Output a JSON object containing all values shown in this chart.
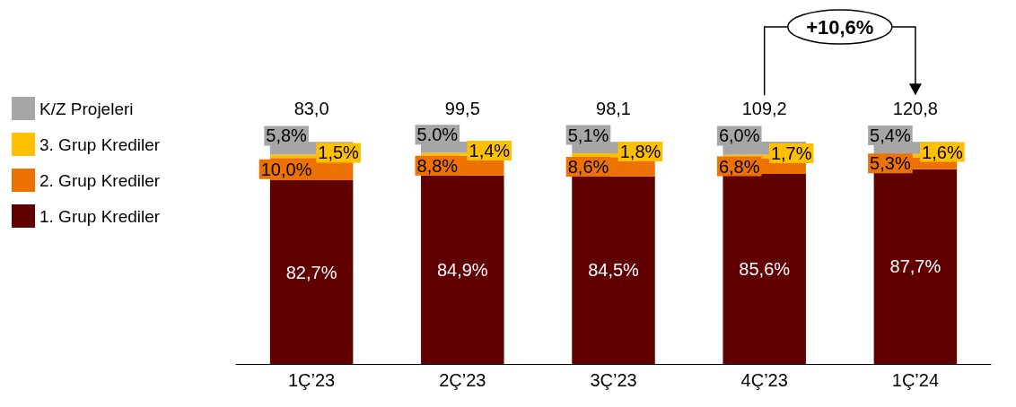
{
  "chart_data": {
    "type": "bar",
    "stacked": true,
    "categories": [
      "1Ç’23",
      "2Ç’23",
      "3Ç’23",
      "4Ç’23",
      "1Ç’24"
    ],
    "series": [
      {
        "name": "1. Grup Krediler",
        "color": "#600000",
        "values": [
          82.7,
          84.9,
          84.5,
          85.6,
          87.7
        ],
        "value_labels": [
          "82,7%",
          "84,9%",
          "84,5%",
          "85,6%",
          "87,7%"
        ]
      },
      {
        "name": "2. Grup Krediler",
        "color": "#ee7203",
        "values": [
          10.0,
          8.8,
          8.6,
          6.8,
          5.3
        ],
        "value_labels": [
          "10,0%",
          "8,8%",
          "8,6%",
          "6,8%",
          "5,3%"
        ]
      },
      {
        "name": "3. Grup Krediler",
        "color": "#ffc000",
        "values": [
          1.5,
          1.4,
          1.8,
          1.7,
          1.6
        ],
        "value_labels": [
          "1,5%",
          "1,4%",
          "1,8%",
          "1,7%",
          "1,6%"
        ]
      },
      {
        "name": "K/Z Projeleri",
        "color": "#a6a6a6",
        "values": [
          5.8,
          5.0,
          5.1,
          6.0,
          5.4
        ],
        "value_labels": [
          "5,8%",
          "5.0%",
          "5,1%",
          "6,0%",
          "5,4%"
        ]
      }
    ],
    "annotations": [
      {
        "text": "83,0",
        "x": "1Ç’23",
        "y": 100
      },
      {
        "text": "99,5",
        "x": "2Ç’23",
        "y": 100
      },
      {
        "text": "98,1",
        "x": "3Ç’23",
        "y": 100
      },
      {
        "text": "109,2",
        "x": "4Ç’23",
        "y": 100
      },
      {
        "text": "120,8",
        "x": "1Ç’24",
        "y": 100
      },
      "+10,6%"
    ],
    "legend": "left"
  }
}
